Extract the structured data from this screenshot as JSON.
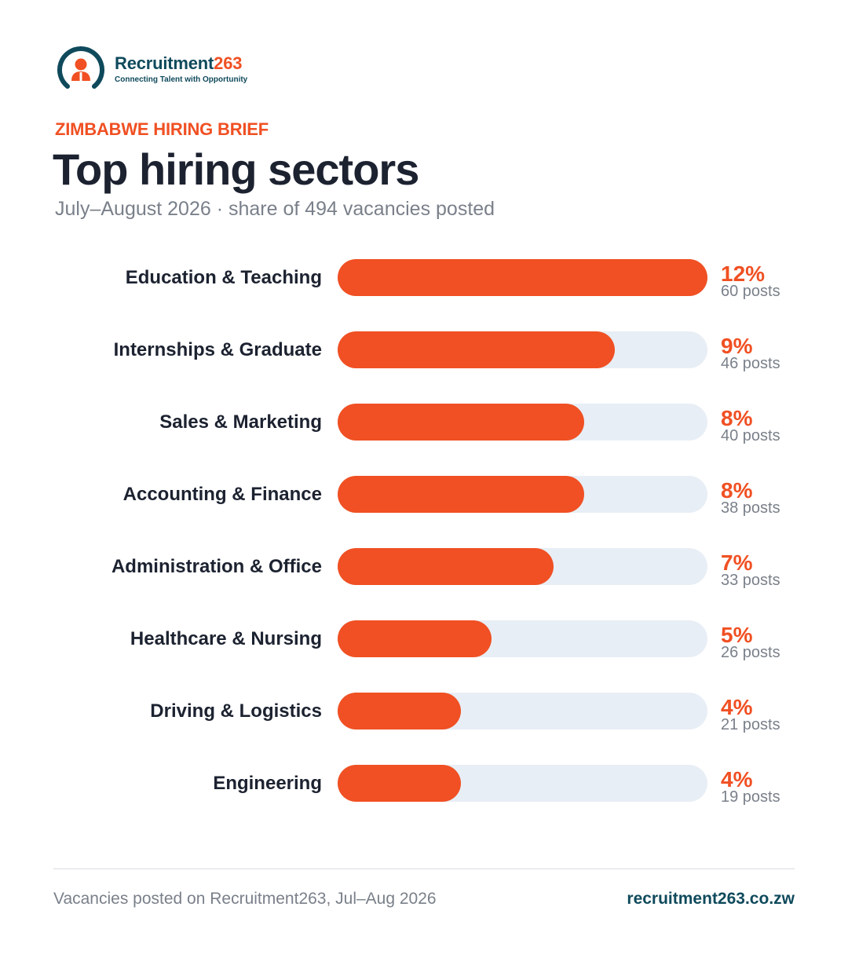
{
  "brand": {
    "name": "Recruitment",
    "name_number": "263",
    "tagline": "Connecting Talent with Opportunity",
    "colors": {
      "accent": "#f05023",
      "navy": "#0f4a5c",
      "track": "#e8eef5"
    }
  },
  "header": {
    "eyebrow": "ZIMBABWE HIRING BRIEF",
    "title": "Top hiring sectors",
    "subtitle": "July–August 2026  ·  share of 494 vacancies posted"
  },
  "chart_data": {
    "type": "bar",
    "orientation": "horizontal",
    "title": "Top hiring sectors",
    "categories": [
      "Education & Teaching",
      "Internships & Graduate",
      "Sales & Marketing",
      "Accounting & Finance",
      "Administration & Office",
      "Healthcare & Nursing",
      "Driving & Logistics",
      "Engineering"
    ],
    "values": [
      12,
      9,
      8,
      8,
      7,
      5,
      4,
      4
    ],
    "value_labels": [
      "12%",
      "9%",
      "8%",
      "8%",
      "7%",
      "5%",
      "4%",
      "4%"
    ],
    "posts": [
      60,
      46,
      40,
      38,
      33,
      26,
      21,
      19
    ],
    "post_labels": [
      "60 posts",
      "46 posts",
      "40 posts",
      "38 posts",
      "33 posts",
      "26 posts",
      "21 posts",
      "19 posts"
    ],
    "xlim": [
      0,
      12
    ],
    "grid": false
  },
  "footer": {
    "note": "Vacancies posted on Recruitment263, Jul–Aug 2026",
    "url": "recruitment263.co.zw"
  }
}
